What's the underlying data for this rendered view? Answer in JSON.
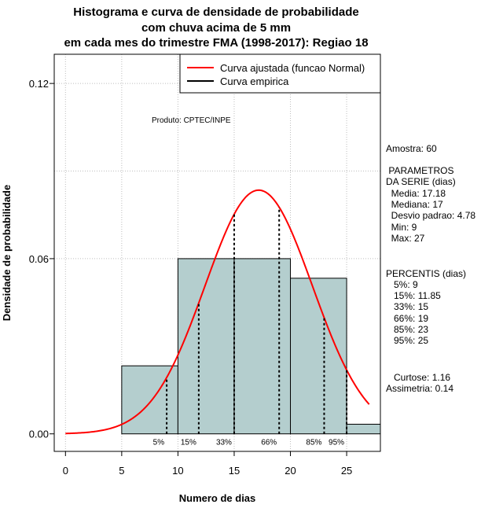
{
  "title": {
    "line1": "Histograma e curva de densidade de probabilidade",
    "line2": "com chuva acima de 5 mm",
    "line3": "em cada mes do trimestre FMA (1998-2017): Regiao 18"
  },
  "chart_data": {
    "type": "histogram",
    "xlabel": "Numero de dias",
    "ylabel": "Densidade de probabilidade",
    "xlim": [
      -1,
      28
    ],
    "ylim": [
      -0.006,
      0.13
    ],
    "xticks": [
      "0",
      "5",
      "10",
      "15",
      "20",
      "25"
    ],
    "xtick_values": [
      0,
      5,
      10,
      15,
      20,
      25
    ],
    "yticks": [
      "0.00",
      "0.06",
      "0.12"
    ],
    "ytick_values": [
      0,
      0.06,
      0.12
    ],
    "grid": true,
    "bins": [
      {
        "start": 5,
        "end": 10,
        "density": 0.0233
      },
      {
        "start": 10,
        "end": 15,
        "density": 0.06
      },
      {
        "start": 15,
        "end": 20,
        "density": 0.06
      },
      {
        "start": 20,
        "end": 25,
        "density": 0.0533
      },
      {
        "start": 25,
        "end": 30,
        "density": 0.0033
      }
    ],
    "normal_fit": {
      "mean": 17.18,
      "sd": 4.78,
      "x_range": [
        0,
        27
      ]
    },
    "percentile_lines": [
      {
        "label": "5%",
        "x": 9
      },
      {
        "label": "15%",
        "x": 11.85
      },
      {
        "label": "33%",
        "x": 15
      },
      {
        "label": "66%",
        "x": 19
      },
      {
        "label": "85%",
        "x": 23
      },
      {
        "label": "95%",
        "x": 25
      }
    ],
    "legend": {
      "position": "top-right",
      "entries": [
        {
          "label": "Curva ajustada (funcao Normal)",
          "color": "#ff0000"
        },
        {
          "label": "Curva empirica",
          "color": "#000000"
        }
      ]
    },
    "annotation": "Produto: CPTEC/INPE"
  },
  "colors": {
    "bar_fill": "#b4cece",
    "curve": "#ff0000",
    "grid": "#bdbdbd"
  },
  "side_panel": {
    "amostra": "Amostra: 60",
    "parametros_title": " PARAMETROS",
    "parametros_sub": "DA SERIE (dias)",
    "media": "  Media: 17.18",
    "mediana": "  Mediana: 17",
    "desvio": "  Desvio padrao: 4.78",
    "min": "  Min: 9",
    "max": "  Max: 27",
    "percentis_title": "PERCENTIS (dias)",
    "p5": "   5%: 9",
    "p15": "   15%: 11.85",
    "p33": "   33%: 15",
    "p66": "   66%: 19",
    "p85": "   85%: 23",
    "p95": "   95%: 25",
    "curtose": "   Curtose: 1.16",
    "assimetria": "Assimetria: 0.14"
  }
}
